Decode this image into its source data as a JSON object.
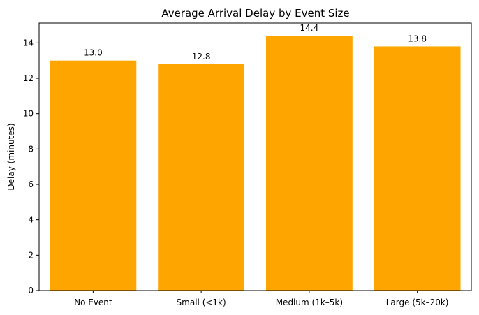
{
  "chart_data": {
    "type": "bar",
    "title": "Average Arrival Delay by Event Size",
    "xlabel": "",
    "ylabel": "Delay (minutes)",
    "categories": [
      "No Event",
      "Small (<1k)",
      "Medium (1k–5k)",
      "Large (5k–20k)"
    ],
    "values": [
      13.0,
      12.8,
      14.4,
      13.8
    ],
    "data_labels": [
      "13.0",
      "12.8",
      "14.4",
      "13.8"
    ],
    "ylim": [
      0,
      15.12
    ],
    "yticks": [
      0,
      2,
      4,
      6,
      8,
      10,
      12,
      14
    ],
    "bar_color": "#FFA500",
    "grid": false,
    "legend": "none"
  }
}
